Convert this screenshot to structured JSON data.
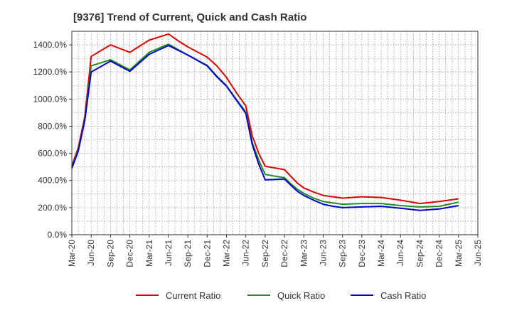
{
  "chart_data": {
    "type": "line",
    "title": "[9376]  Trend of Current, Quick and Cash Ratio",
    "xlabel": "",
    "ylabel": "",
    "ylim": [
      0,
      1500
    ],
    "yticks": [
      0,
      200,
      400,
      600,
      800,
      1000,
      1200,
      1400
    ],
    "ytick_labels": [
      "0.0%",
      "200.0%",
      "400.0%",
      "600.0%",
      "800.0%",
      "1000.0%",
      "1200.0%",
      "1400.0%"
    ],
    "xlim": [
      0,
      21
    ],
    "xtick_labels": [
      "Mar-20",
      "Jun-20",
      "Sep-20",
      "Dec-20",
      "Mar-21",
      "Jun-21",
      "Sep-21",
      "Dec-21",
      "Mar-22",
      "Jun-22",
      "Sep-22",
      "Dec-22",
      "Mar-23",
      "Jun-23",
      "Sep-23",
      "Dec-23",
      "Mar-24",
      "Jun-24",
      "Sep-24",
      "Dec-24",
      "Mar-25",
      "Jun-25"
    ],
    "grid": true,
    "legend_position": "bottom",
    "x": [
      0,
      0.33,
      0.67,
      1,
      2,
      3,
      4,
      5,
      5.5,
      6,
      7,
      7.5,
      8,
      8.5,
      9,
      9.33,
      9.67,
      10,
      11,
      11.33,
      11.67,
      12,
      12.5,
      13,
      13.5,
      14,
      15,
      16,
      17,
      18,
      19,
      20
    ],
    "series": [
      {
        "name": "Current Ratio",
        "color": "#dd0000",
        "values": [
          510,
          640,
          870,
          1315,
          1400,
          1345,
          1435,
          1480,
          1430,
          1385,
          1310,
          1245,
          1160,
          1050,
          950,
          730,
          600,
          505,
          480,
          430,
          380,
          345,
          315,
          290,
          280,
          270,
          280,
          275,
          255,
          230,
          245,
          265
        ]
      },
      {
        "name": "Quick Ratio",
        "color": "#228b22",
        "values": [
          500,
          625,
          850,
          1245,
          1290,
          1215,
          1345,
          1405,
          1365,
          1325,
          1250,
          1170,
          1100,
          1000,
          905,
          680,
          550,
          445,
          420,
          375,
          335,
          305,
          270,
          245,
          235,
          225,
          230,
          230,
          215,
          205,
          210,
          240
        ]
      },
      {
        "name": "Cash Ratio",
        "color": "#0000cc",
        "values": [
          490,
          615,
          840,
          1200,
          1280,
          1205,
          1330,
          1395,
          1360,
          1325,
          1245,
          1165,
          1095,
          995,
          895,
          665,
          520,
          405,
          410,
          365,
          320,
          290,
          255,
          225,
          210,
          200,
          205,
          210,
          195,
          180,
          190,
          215
        ]
      }
    ]
  }
}
